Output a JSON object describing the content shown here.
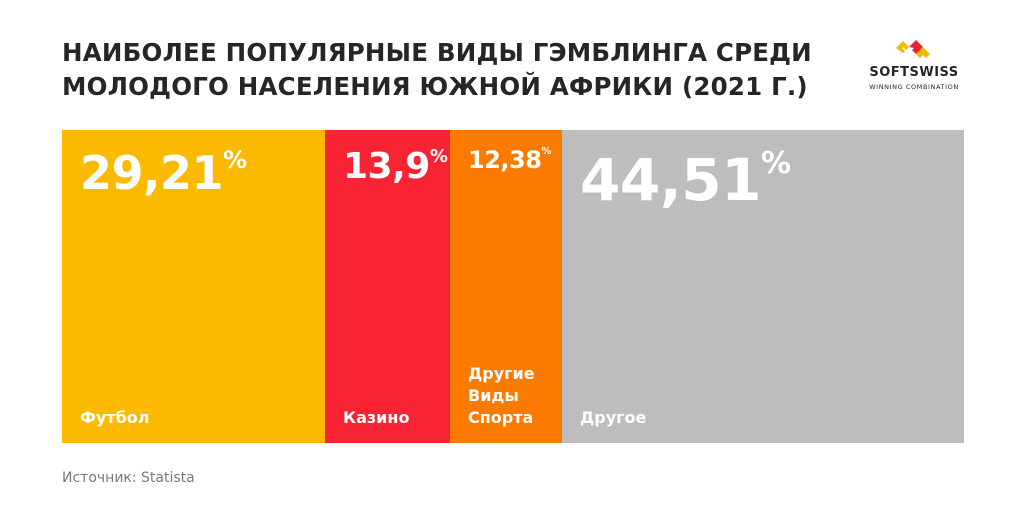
{
  "title": "НАИБОЛЕЕ ПОПУЛЯРНЫЕ ВИДЫ ГЭМБЛИНГА СРЕДИ МОЛОДОГО НАСЕЛЕНИЯ ЮЖНОЙ АФРИКИ (2021 Г.)",
  "logo": {
    "name": "SOFTSWISS",
    "tagline": "WINNING COMBINATION",
    "colors": [
      "#f5b800",
      "#e8242f"
    ]
  },
  "source": "Источник: Statista",
  "chart_data": {
    "type": "bar",
    "orientation": "stacked-horizontal-100",
    "title": "НАИБОЛЕЕ ПОПУЛЯРНЫЕ ВИДЫ ГЭМБЛИНГА СРЕДИ МОЛОДОГО НАСЕЛЕНИЯ ЮЖНОЙ АФРИКИ (2021 Г.)",
    "unit": "%",
    "categories": [
      "Футбол",
      "Казино",
      "Другие Виды Спорта",
      "Другое"
    ],
    "values": [
      29.21,
      13.9,
      12.38,
      44.51
    ],
    "value_labels": [
      "29,21",
      "13,9",
      "12,38",
      "44,51"
    ],
    "colors": [
      "#fbb900",
      "#f82434",
      "#fa7b00",
      "#bdbdbd"
    ],
    "grid": false,
    "legend": "none"
  }
}
